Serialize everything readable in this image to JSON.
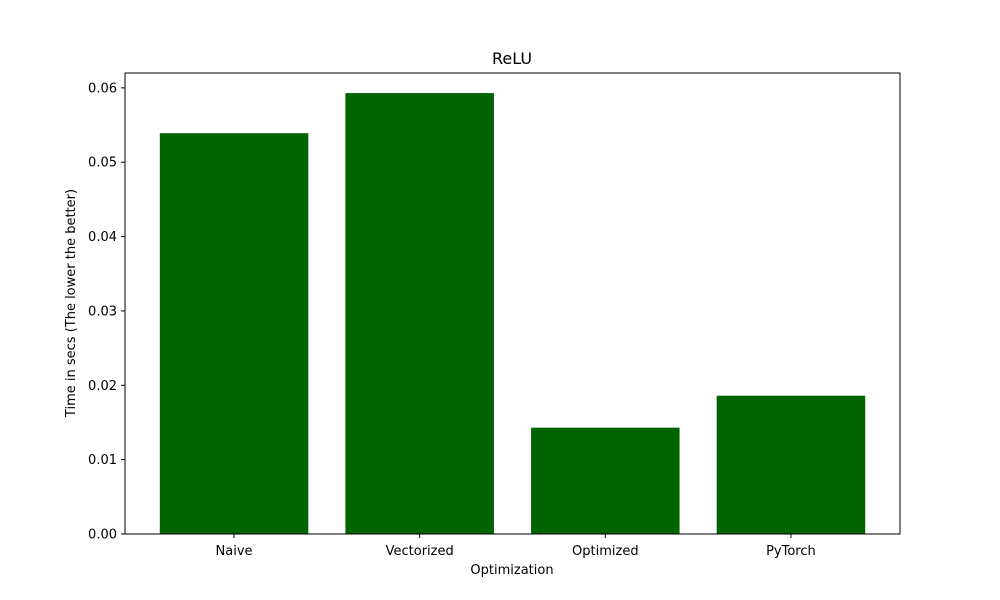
{
  "chart_data": {
    "type": "bar",
    "title": "ReLU",
    "xlabel": "Optimization",
    "ylabel": "Time in secs (The lower the better)",
    "categories": [
      "Naive",
      "Vectorized",
      "Optimized",
      "PyTorch"
    ],
    "values": [
      0.0539,
      0.0593,
      0.0143,
      0.0186
    ],
    "ylim": [
      0,
      0.062
    ],
    "yticks": [
      "0.00",
      "0.01",
      "0.02",
      "0.03",
      "0.04",
      "0.05",
      "0.06"
    ],
    "bar_color": "#006400",
    "grid": false,
    "legend": "none"
  }
}
